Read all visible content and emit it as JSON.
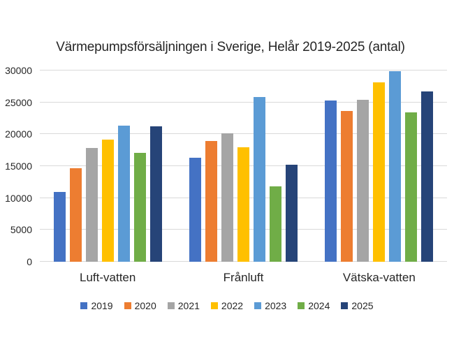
{
  "colors": {
    "gridline": "#d9d9d9",
    "text": "#262626",
    "background": "#ffffff"
  },
  "chart_data": {
    "type": "bar",
    "title": "Värmepumpsförsäljningen i Sverige, Helår 2019-2025 (antal)",
    "categories": [
      "Luft-vatten",
      "Frånluft",
      "Vätska-vatten"
    ],
    "series": [
      {
        "name": "2019",
        "color": "#4472C4",
        "values": [
          11000,
          16300,
          25300
        ]
      },
      {
        "name": "2020",
        "color": "#ED7D31",
        "values": [
          14700,
          18900,
          23700
        ]
      },
      {
        "name": "2021",
        "color": "#A5A5A5",
        "values": [
          17800,
          20100,
          25400
        ]
      },
      {
        "name": "2022",
        "color": "#FFC000",
        "values": [
          19200,
          18000,
          28100
        ]
      },
      {
        "name": "2023",
        "color": "#5B9BD5",
        "values": [
          21300,
          25800,
          29900
        ]
      },
      {
        "name": "2024",
        "color": "#70AD47",
        "values": [
          17100,
          11800,
          23400
        ]
      },
      {
        "name": "2025",
        "color": "#264478",
        "values": [
          21200,
          15200,
          26700
        ]
      }
    ],
    "xlabel": "",
    "ylabel": "",
    "ylim": [
      0,
      30000
    ],
    "yticks": [
      0,
      5000,
      10000,
      15000,
      20000,
      25000,
      30000
    ],
    "grid": "horizontal",
    "legend_position": "bottom"
  }
}
